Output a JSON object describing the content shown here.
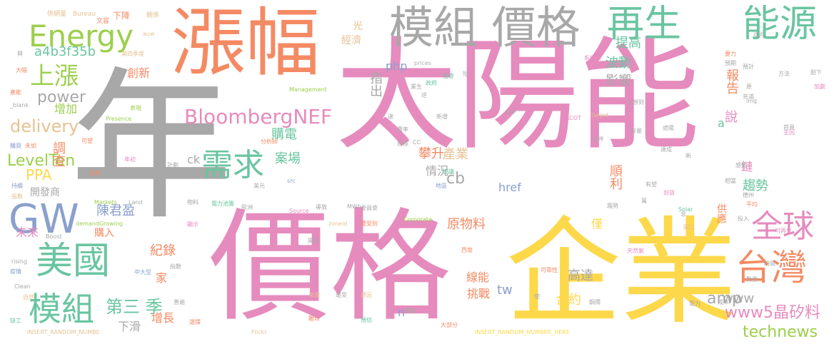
{
  "words": [
    {
      "text": "太陽能",
      "color": "pink"
    },
    {
      "text": "年",
      "color": "gray"
    },
    {
      "text": "價格",
      "color": "pink"
    },
    {
      "text": "企業",
      "color": "yellow"
    },
    {
      "text": "漲幅",
      "color": "orange"
    },
    {
      "text": "模組 價格",
      "color": "gray"
    },
    {
      "text": "再生",
      "color": "green"
    },
    {
      "text": "能源",
      "color": "green"
    },
    {
      "text": "Energy",
      "color": "lime"
    },
    {
      "text": "上漲",
      "color": "lime"
    },
    {
      "text": "GW",
      "color": "blue"
    },
    {
      "text": "美國",
      "color": "green"
    },
    {
      "text": "模組",
      "color": "green"
    },
    {
      "text": "台灣",
      "color": "orange"
    },
    {
      "text": "全球",
      "color": "pink"
    },
    {
      "text": "需求",
      "color": "green"
    },
    {
      "text": "BloombergNEF",
      "color": "pink"
    },
    {
      "text": "a4b3f35b",
      "color": "green"
    },
    {
      "text": "technews",
      "color": "lime"
    },
    {
      "text": "www5晶矽料",
      "color": "pink"
    },
    {
      "text": "delivery",
      "color": "tan"
    },
    {
      "text": "power",
      "color": "gray"
    },
    {
      "text": "LevelTen",
      "color": "lime"
    },
    {
      "text": "PPA",
      "color": "yellow"
    },
    {
      "text": "第三 季",
      "color": "green"
    },
    {
      "text": "陳君盈",
      "color": "blue"
    },
    {
      "text": "原物料",
      "color": "orange"
    },
    {
      "text": "amp",
      "color": "gray"
    },
    {
      "text": "www",
      "color": "gray"
    },
    {
      "text": "合約",
      "color": "yellow"
    },
    {
      "text": "高達",
      "color": "gray"
    },
    {
      "text": "挑戰",
      "color": "orange"
    },
    {
      "text": "案場",
      "color": "green"
    },
    {
      "text": "購電",
      "color": "green"
    },
    {
      "text": "攀升",
      "color": "orange"
    },
    {
      "text": "情況",
      "color": "gray"
    },
    {
      "text": "產業",
      "color": "tan"
    },
    {
      "text": "指出",
      "color": "gray"
    },
    {
      "text": "影響",
      "color": "gray"
    },
    {
      "text": "波動",
      "color": "green"
    },
    {
      "text": "提高",
      "color": "green"
    },
    {
      "text": "報告",
      "color": "orange"
    },
    {
      "text": "說",
      "color": "pink"
    },
    {
      "text": "趨勢",
      "color": "green"
    },
    {
      "text": "順利",
      "color": "orange"
    },
    {
      "text": "cb",
      "color": "gray"
    },
    {
      "text": "href",
      "color": "blue"
    },
    {
      "text": "php",
      "color": "blue"
    },
    {
      "text": "tw",
      "color": "blue"
    },
    {
      "text": "增長",
      "color": "orange"
    },
    {
      "text": "下滑",
      "color": "gray"
    },
    {
      "text": "紀錄",
      "color": "orange"
    },
    {
      "text": "家",
      "color": "orange"
    },
    {
      "text": "調查",
      "color": "orange"
    },
    {
      "text": "增加",
      "color": "lime"
    },
    {
      "text": "未來",
      "color": "pink"
    },
    {
      "text": "創新",
      "color": "orange"
    },
    {
      "text": "購入",
      "color": "orange"
    },
    {
      "text": "開發商",
      "color": "gray"
    },
    {
      "text": "經濟",
      "color": "tan"
    },
    {
      "text": "光",
      "color": "tan"
    },
    {
      "text": "供應",
      "color": "orange"
    },
    {
      "text": "線能",
      "color": "orange"
    },
    {
      "text": "僅",
      "color": "yellow"
    },
    {
      "text": "鏈",
      "color": "pink"
    },
    {
      "text": "n",
      "color": "blue"
    },
    {
      "text": "a",
      "color": "green"
    },
    {
      "text": "ck",
      "color": "gray"
    },
    {
      "text": "下降",
      "color": "orange"
    },
    {
      "text": "Bureau",
      "color": "tan"
    },
    {
      "text": "併網量",
      "color": "tan"
    },
    {
      "text": "文容",
      "color": "orange"
    },
    {
      "text": "關係",
      "color": "tan"
    },
    {
      "text": "auw",
      "color": "tan"
    },
    {
      "text": "第四季度",
      "color": "tan"
    },
    {
      "text": "Management",
      "color": "lime"
    },
    {
      "text": "Presence",
      "color": "lime"
    },
    {
      "text": "Markets",
      "color": "lime"
    },
    {
      "text": "Land",
      "color": "gray"
    },
    {
      "text": "demandGrowing",
      "color": "lime"
    },
    {
      "text": "Boost",
      "color": "gray"
    },
    {
      "text": "rising",
      "color": "gray"
    },
    {
      "text": "Clean",
      "color": "gray"
    },
    {
      "text": "INSERT_RANDOM_NUMBE",
      "color": "tan"
    },
    {
      "text": "INSERT_RANDOM_NUMBER_HERE",
      "color": "yellow"
    },
    {
      "text": "Flickr",
      "color": "tan"
    },
    {
      "text": "Source",
      "color": "pink"
    },
    {
      "text": "zoneid",
      "color": "tan"
    },
    {
      "text": "Corporate",
      "color": "lime"
    },
    {
      "text": "MWh",
      "color": "gray"
    },
    {
      "text": "src",
      "color": "blue"
    },
    {
      "text": "prices",
      "color": "gray"
    },
    {
      "text": "SPP",
      "color": "gray"
    },
    {
      "text": "ERCOT",
      "color": "pink"
    },
    {
      "text": "Solar",
      "color": "green"
    },
    {
      "text": "img",
      "color": "gray"
    },
    {
      "text": "target",
      "color": "tan"
    },
    {
      "text": "CC",
      "color": "gray"
    },
    {
      "text": "_blank",
      "color": "gray"
    },
    {
      "text": "電力池籌",
      "color": "green"
    },
    {
      "text": "天然氣",
      "color": "pink"
    },
    {
      "text": "大部分",
      "color": "orange"
    },
    {
      "text": "中大型",
      "color": "blue"
    },
    {
      "text": "遭受到",
      "color": "orange"
    },
    {
      "text": "預估",
      "color": "green"
    },
    {
      "text": "原因",
      "color": "tan"
    },
    {
      "text": "來源",
      "color": "tan"
    },
    {
      "text": "德州",
      "color": "gray"
    },
    {
      "text": "電力",
      "color": "gray"
    },
    {
      "text": "鋼價",
      "color": "gray"
    },
    {
      "text": "導致",
      "color": "gray"
    },
    {
      "text": "委員會",
      "color": "gray"
    },
    {
      "text": "歐洲",
      "color": "gray"
    },
    {
      "text": "美元",
      "color": "gray"
    },
    {
      "text": "首頁",
      "color": "gray"
    },
    {
      "text": "分析師",
      "color": "orange"
    },
    {
      "text": "系統商",
      "color": "pink"
    },
    {
      "text": "可再生",
      "color": "pink"
    },
    {
      "text": "方法",
      "color": "gray"
    },
    {
      "text": "充滿",
      "color": "gray"
    },
    {
      "text": "創下",
      "color": "gray"
    },
    {
      "text": "加劇",
      "color": "pink"
    },
    {
      "text": "政府",
      "color": "green"
    },
    {
      "text": "社會",
      "color": "green"
    },
    {
      "text": "新增",
      "color": "gray"
    },
    {
      "text": "亞洲",
      "color": "gray"
    },
    {
      "text": "容量",
      "color": "gray"
    },
    {
      "text": "主因",
      "color": "pink"
    },
    {
      "text": "地區",
      "color": "blue"
    },
    {
      "text": "目標",
      "color": "gray"
    },
    {
      "text": "費率",
      "color": "gray"
    },
    {
      "text": "速",
      "color": "gray"
    },
    {
      "text": "協議",
      "color": "green"
    },
    {
      "text": "到貨",
      "color": "pink"
    },
    {
      "text": "平均",
      "color": "orange"
    },
    {
      "text": "開工",
      "color": "tan"
    },
    {
      "text": "投入",
      "color": "gray"
    },
    {
      "text": "時間",
      "color": "gray"
    },
    {
      "text": "疫情",
      "color": "blue"
    },
    {
      "text": "自然",
      "color": "tan"
    },
    {
      "text": "缺工",
      "color": "green"
    },
    {
      "text": "持續",
      "color": "blue"
    },
    {
      "text": "張數",
      "color": "tan"
    },
    {
      "text": "迎來",
      "color": "orange"
    },
    {
      "text": "產能",
      "color": "orange"
    },
    {
      "text": "未如",
      "color": "orange"
    },
    {
      "text": "購買",
      "color": "blue"
    },
    {
      "text": "大幅",
      "color": "orange"
    },
    {
      "text": "興",
      "color": "gray"
    },
    {
      "text": "逆",
      "color": "gray"
    },
    {
      "text": "選擇",
      "color": "orange"
    },
    {
      "text": "遭受",
      "color": "gray"
    },
    {
      "text": "難以",
      "color": "orange"
    },
    {
      "text": "價補",
      "color": "gray"
    },
    {
      "text": "開出",
      "color": "gray"
    },
    {
      "text": "顯示",
      "color": "pink"
    },
    {
      "text": "物料",
      "color": "gray"
    },
    {
      "text": "年初",
      "color": "pink"
    },
    {
      "text": "承諾",
      "color": "gray"
    },
    {
      "text": "計劃",
      "color": "gray"
    },
    {
      "text": "表現",
      "color": "lime"
    },
    {
      "text": "可望",
      "color": "orange"
    },
    {
      "text": "短",
      "color": "gray"
    },
    {
      "text": "預期",
      "color": "gray"
    },
    {
      "text": "要力",
      "color": "orange"
    },
    {
      "text": "達成",
      "color": "gray"
    },
    {
      "text": "萬",
      "color": "gray"
    },
    {
      "text": "普遍",
      "color": "gray"
    },
    {
      "text": "成本",
      "color": "gray"
    },
    {
      "text": "趨勢",
      "color": "gray"
    },
    {
      "text": "可靠性",
      "color": "orange"
    },
    {
      "text": "西南",
      "color": "orange"
    },
    {
      "text": "數量",
      "color": "gray"
    },
    {
      "text": "業生",
      "color": "gray"
    },
    {
      "text": "沒想到",
      "color": "gray"
    },
    {
      "text": "遮陽",
      "color": "gray"
    },
    {
      "text": "新",
      "color": "gray"
    },
    {
      "text": "非",
      "color": "gray"
    },
    {
      "text": "有望",
      "color": "gray"
    },
    {
      "text": "感動",
      "color": "gray"
    },
    {
      "text": "相當",
      "color": "gray"
    },
    {
      "text": "預計",
      "color": "gray"
    },
    {
      "text": "指數",
      "color": "gray"
    },
    {
      "text": "使",
      "color": "gray"
    },
    {
      "text": "逐月",
      "color": "gray"
    },
    {
      "text": "原",
      "color": "gray"
    }
  ]
}
